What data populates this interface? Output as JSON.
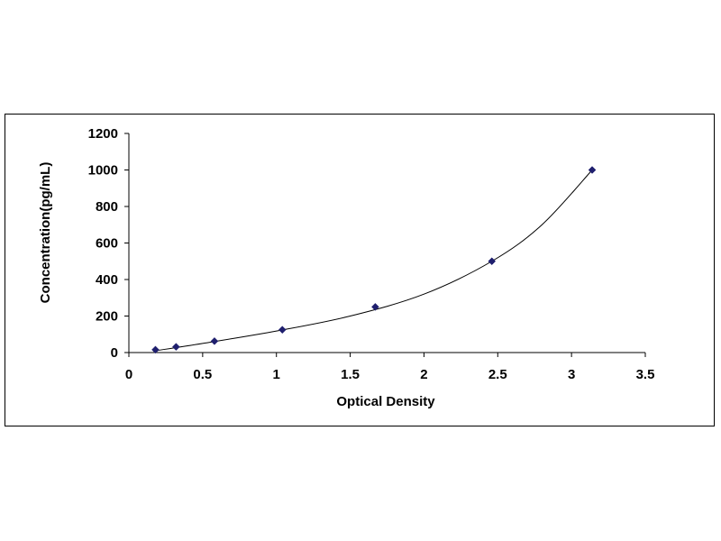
{
  "chart_data": {
    "type": "scatter",
    "title": "",
    "xlabel": "Optical Density",
    "ylabel": "Concentration(pg/mL)",
    "xlim": [
      0,
      3.5
    ],
    "ylim": [
      0,
      1200
    ],
    "x_ticks": [
      "0",
      "0.5",
      "1",
      "1.5",
      "2",
      "2.5",
      "3",
      "3.5"
    ],
    "y_ticks": [
      "0",
      "200",
      "400",
      "600",
      "800",
      "1000",
      "1200"
    ],
    "grid": false,
    "legend": "none",
    "series": [
      {
        "marker": "diamond",
        "color": "#1f1f6e",
        "points": [
          {
            "x": 0.18,
            "y": 15.6
          },
          {
            "x": 0.32,
            "y": 31.25
          },
          {
            "x": 0.58,
            "y": 62.5
          },
          {
            "x": 1.04,
            "y": 125
          },
          {
            "x": 1.67,
            "y": 250
          },
          {
            "x": 2.46,
            "y": 500
          },
          {
            "x": 3.14,
            "y": 1000
          }
        ]
      }
    ],
    "trendline": {
      "type": "smooth-curve",
      "color": "#000000",
      "points": [
        {
          "x": 0.18,
          "y": 10
        },
        {
          "x": 0.5,
          "y": 50
        },
        {
          "x": 1.0,
          "y": 118
        },
        {
          "x": 1.5,
          "y": 200
        },
        {
          "x": 2.0,
          "y": 320
        },
        {
          "x": 2.46,
          "y": 500
        },
        {
          "x": 2.8,
          "y": 700
        },
        {
          "x": 3.14,
          "y": 1000
        }
      ]
    }
  }
}
